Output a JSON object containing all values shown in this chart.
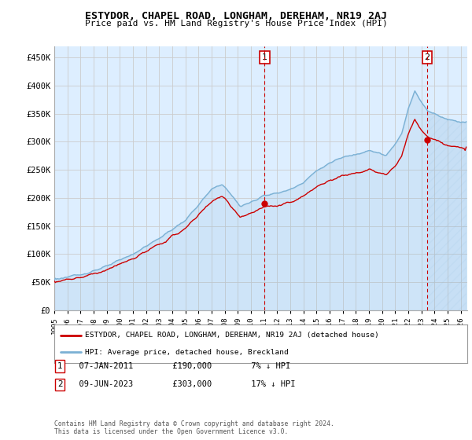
{
  "title": "ESTYDOR, CHAPEL ROAD, LONGHAM, DEREHAM, NR19 2AJ",
  "subtitle": "Price paid vs. HM Land Registry's House Price Index (HPI)",
  "ylabel_ticks": [
    "£0",
    "£50K",
    "£100K",
    "£150K",
    "£200K",
    "£250K",
    "£300K",
    "£350K",
    "£400K",
    "£450K"
  ],
  "ytick_vals": [
    0,
    50000,
    100000,
    150000,
    200000,
    250000,
    300000,
    350000,
    400000,
    450000
  ],
  "ylim": [
    0,
    470000
  ],
  "xlim_start": 1995.0,
  "xlim_end": 2026.5,
  "sale1": {
    "date_x": 2011.04,
    "price": 190000,
    "label": "1"
  },
  "sale2": {
    "date_x": 2023.44,
    "price": 303000,
    "label": "2"
  },
  "legend_line1": "ESTYDOR, CHAPEL ROAD, LONGHAM, DEREHAM, NR19 2AJ (detached house)",
  "legend_line2": "HPI: Average price, detached house, Breckland",
  "footer": "Contains HM Land Registry data © Crown copyright and database right 2024.\nThis data is licensed under the Open Government Licence v3.0.",
  "line_color_red": "#cc0000",
  "line_color_blue": "#7ab0d4",
  "grid_color": "#cccccc",
  "plot_bg": "#ddeeff",
  "dashed_line_color": "#cc0000",
  "note1_date": "07-JAN-2011",
  "note1_price": "£190,000",
  "note1_pct": "7% ↓ HPI",
  "note2_date": "09-JUN-2023",
  "note2_price": "£303,000",
  "note2_pct": "17% ↓ HPI"
}
